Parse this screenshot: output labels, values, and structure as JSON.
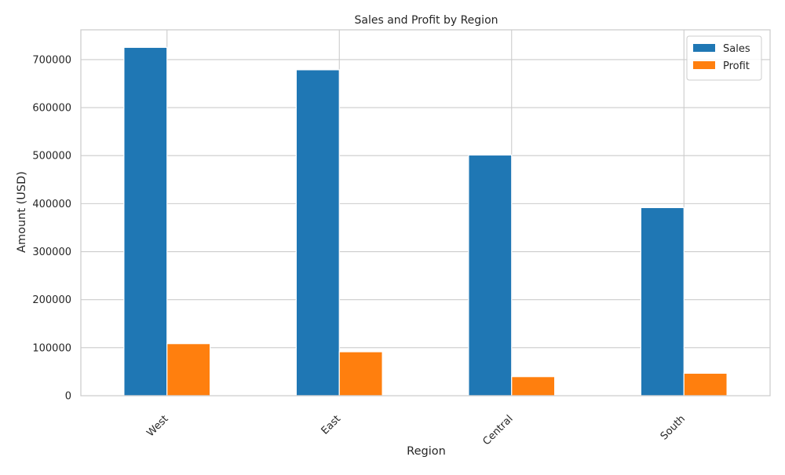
{
  "chart_data": {
    "type": "bar",
    "title": "Sales and Profit by Region",
    "xlabel": "Region",
    "ylabel": "Amount (USD)",
    "categories": [
      "West",
      "East",
      "Central",
      "South"
    ],
    "series": [
      {
        "name": "Sales",
        "color": "#1f77b4",
        "values": [
          725458,
          678781,
          501240,
          391722
        ]
      },
      {
        "name": "Profit",
        "color": "#ff7f0e",
        "values": [
          108418,
          91523,
          39706,
          46749
        ]
      }
    ],
    "ylim": [
      0,
      762000
    ],
    "yticks": [
      0,
      100000,
      200000,
      300000,
      400000,
      500000,
      600000,
      700000
    ],
    "ytick_labels": [
      "0",
      "100000",
      "200000",
      "300000",
      "400000",
      "500000",
      "600000",
      "700000"
    ],
    "x_tick_rotation": 45,
    "grid": true,
    "legend_position": "top-right"
  }
}
